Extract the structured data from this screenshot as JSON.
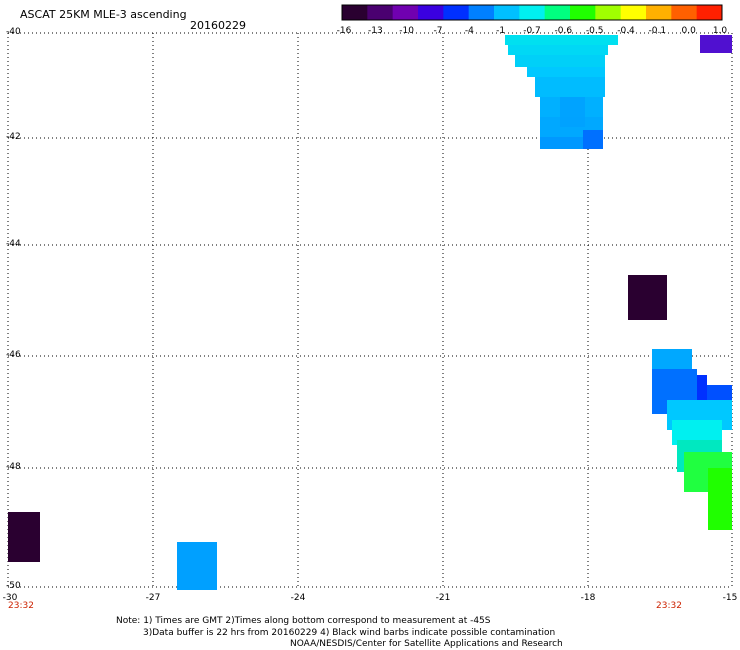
{
  "header": {
    "title": "ASCAT 25KM MLE-3 ascending",
    "date": "20160229"
  },
  "colorbar": {
    "labels": [
      "-16",
      "-13",
      "-10",
      "-7",
      "-4",
      "-1",
      "-0.7",
      "-0.6",
      "-0.5",
      "-0.4",
      "-0.1",
      "0.0",
      "1.0"
    ],
    "colors": [
      "#2a0030",
      "#4a0070",
      "#7000b0",
      "#3a00e0",
      "#0030ff",
      "#0080ff",
      "#00c0ff",
      "#00f0f0",
      "#00ff80",
      "#20ff00",
      "#a0ff00",
      "#ffff00",
      "#ffb000",
      "#ff6000",
      "#ff2000"
    ]
  },
  "axes": {
    "lat_labels": [
      "-40",
      "-42",
      "-44",
      "-46",
      "-48",
      "-50"
    ],
    "lon_labels": [
      "-30",
      "-27",
      "-24",
      "-21",
      "-18",
      "-15"
    ],
    "lon_range": [
      -30,
      -15
    ],
    "lat_range": [
      -50,
      -40
    ],
    "grid": true
  },
  "times": {
    "left": "23:32",
    "right": "23:32"
  },
  "note": {
    "line1": "Note: 1) Times are GMT 2)Times along bottom correspond to measurement at -45S",
    "line2": "3)Data buffer is 22 hrs from 20160229 4) Black wind barbs indicate possible contamination",
    "line3": "NOAA/NESDIS/Center for Satellite Applications and Research"
  }
}
